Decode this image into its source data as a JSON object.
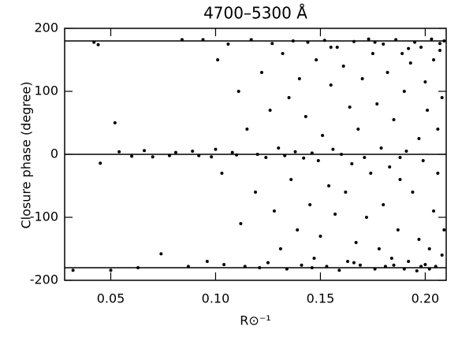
{
  "chart_data": {
    "type": "scatter",
    "title": "4700–5300 Å",
    "x_label": "R⊙⁻¹",
    "y_label": "Closure phase (degree)",
    "color": "#000000",
    "xlim": [
      0.028,
      0.21
    ],
    "ylim": [
      -200,
      200
    ],
    "xticks": [
      {
        "value": 0.05,
        "label": "0.05"
      },
      {
        "value": 0.1,
        "label": "0.10"
      },
      {
        "value": 0.15,
        "label": "0.15"
      },
      {
        "value": 0.2,
        "label": "0.20"
      }
    ],
    "yticks": [
      -200,
      -100,
      0,
      100,
      200
    ],
    "hlines": [
      180,
      0,
      -180
    ],
    "x": [
      0.032,
      0.042,
      0.044,
      0.045,
      0.05,
      0.052,
      0.054,
      0.06,
      0.063,
      0.066,
      0.07,
      0.074,
      0.078,
      0.081,
      0.084,
      0.087,
      0.089,
      0.092,
      0.094,
      0.096,
      0.098,
      0.1,
      0.101,
      0.103,
      0.104,
      0.106,
      0.108,
      0.11,
      0.111,
      0.112,
      0.114,
      0.115,
      0.117,
      0.119,
      0.12,
      0.121,
      0.122,
      0.124,
      0.125,
      0.126,
      0.127,
      0.128,
      0.13,
      0.131,
      0.132,
      0.133,
      0.134,
      0.135,
      0.136,
      0.137,
      0.138,
      0.139,
      0.14,
      0.141,
      0.142,
      0.143,
      0.144,
      0.145,
      0.146,
      0.147,
      0.148,
      0.149,
      0.15,
      0.151,
      0.152,
      0.153,
      0.154,
      0.155,
      0.156,
      0.157,
      0.158,
      0.159,
      0.16,
      0.161,
      0.162,
      0.163,
      0.164,
      0.165,
      0.166,
      0.167,
      0.168,
      0.169,
      0.17,
      0.171,
      0.172,
      0.173,
      0.174,
      0.175,
      0.176,
      0.177,
      0.178,
      0.179,
      0.18,
      0.18,
      0.181,
      0.182,
      0.183,
      0.184,
      0.185,
      0.186,
      0.187,
      0.188,
      0.189,
      0.19,
      0.19,
      0.191,
      0.192,
      0.193,
      0.194,
      0.195,
      0.196,
      0.197,
      0.197,
      0.198,
      0.199,
      0.2,
      0.2,
      0.201,
      0.202,
      0.203,
      0.204,
      0.204,
      0.205,
      0.206,
      0.206,
      0.207,
      0.208,
      0.208,
      0.209,
      0.209,
      0.198,
      0.192,
      0.185,
      0.176,
      0.166,
      0.155,
      0.146,
      0.188,
      0.202,
      0.207
    ],
    "values": [
      -184,
      178,
      174,
      -14,
      -184,
      50,
      4,
      -3,
      -180,
      6,
      -4,
      -158,
      -2,
      3,
      182,
      -178,
      5,
      -2,
      182,
      -170,
      -4,
      8,
      150,
      -30,
      -175,
      175,
      3,
      -1,
      100,
      -110,
      -178,
      40,
      182,
      -60,
      0,
      -180,
      130,
      -5,
      -172,
      70,
      176,
      -90,
      10,
      -150,
      160,
      -2,
      -182,
      90,
      -40,
      180,
      4,
      -120,
      120,
      -176,
      -6,
      60,
      178,
      -80,
      2,
      -165,
      150,
      -10,
      -130,
      30,
      181,
      -178,
      -50,
      110,
      8,
      -95,
      170,
      -184,
      0,
      140,
      -60,
      -170,
      75,
      -15,
      179,
      -140,
      40,
      -176,
      120,
      -5,
      -100,
      183,
      -30,
      160,
      -182,
      80,
      -150,
      10,
      175,
      -80,
      -178,
      130,
      -20,
      -165,
      55,
      182,
      -120,
      -40,
      160,
      -182,
      100,
      5,
      -170,
      145,
      -60,
      178,
      -185,
      25,
      -135,
      170,
      -10,
      -175,
      115,
      70,
      -150,
      183,
      -90,
      150,
      -178,
      40,
      -30,
      165,
      -160,
      90,
      -120,
      180,
      -178,
      168,
      -176,
      178,
      -172,
      170,
      -180,
      -5,
      -182,
      176
    ]
  }
}
